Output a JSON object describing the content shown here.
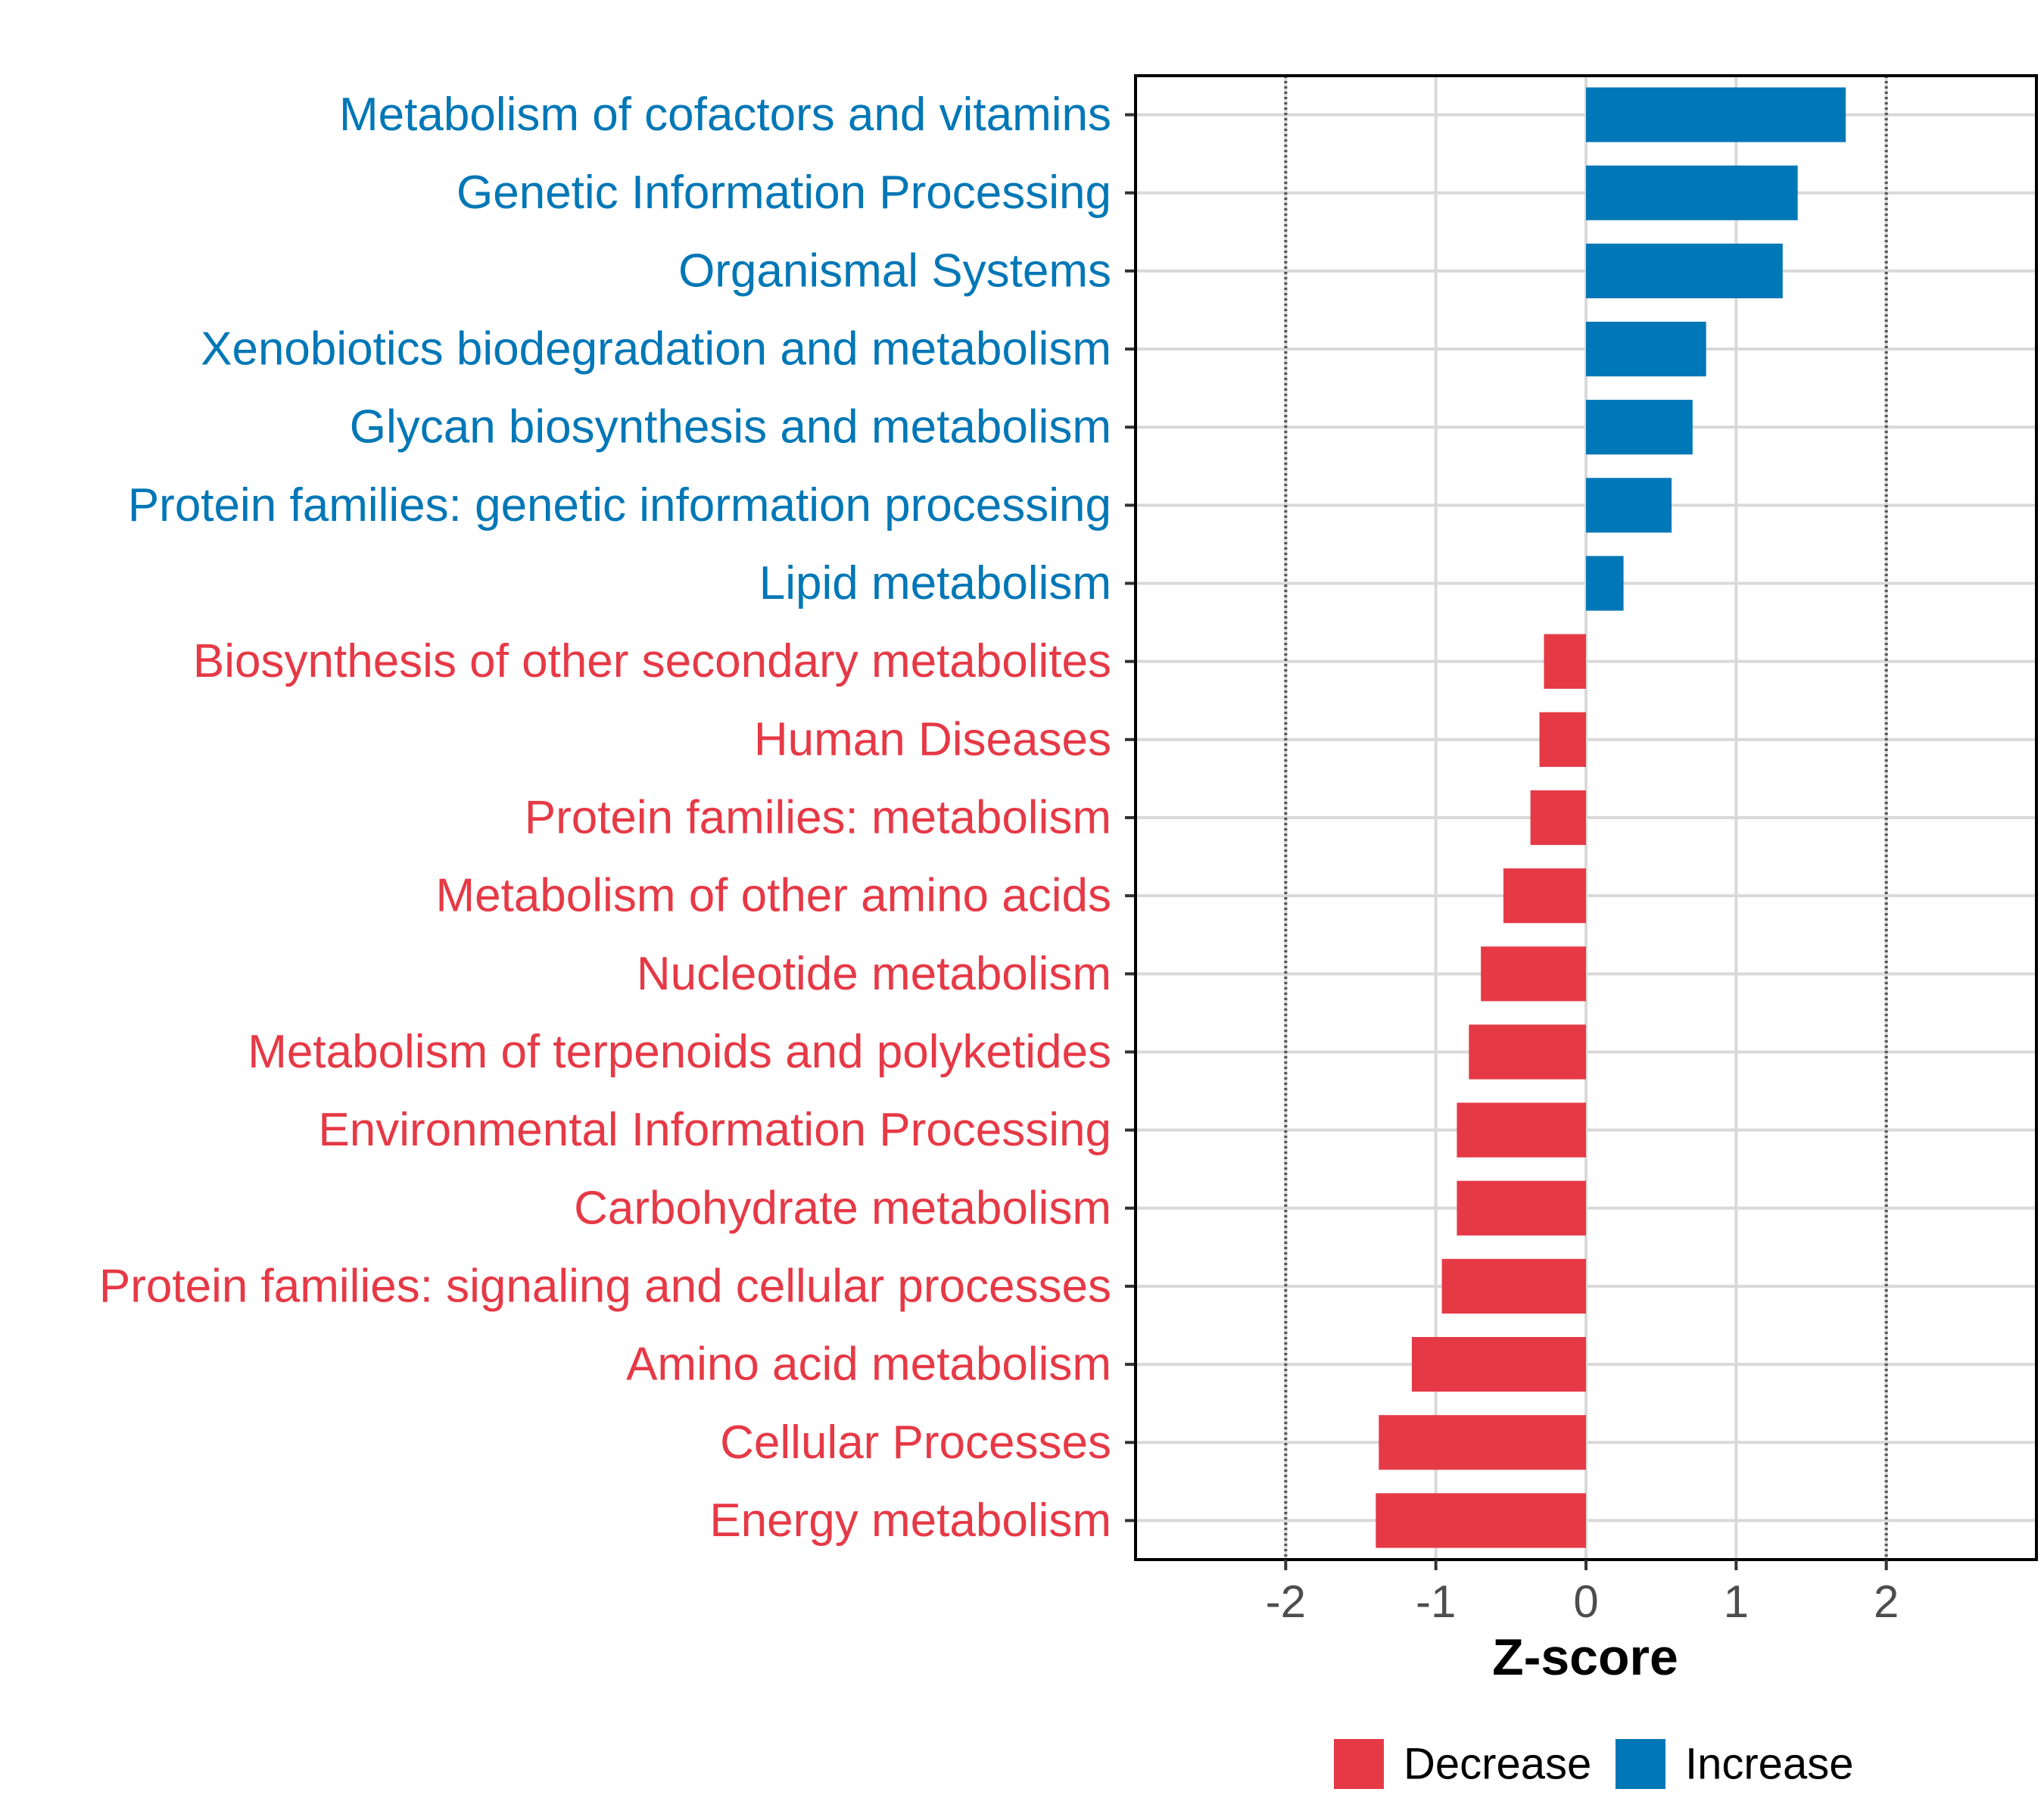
{
  "chart_data": {
    "type": "bar",
    "orientation": "horizontal",
    "xlabel": "Z-score",
    "ylabel": "",
    "xlim": [
      -3,
      3
    ],
    "xticks": [
      -2,
      -1,
      0,
      1,
      2
    ],
    "reference_lines": [
      -2,
      2
    ],
    "grid": true,
    "legend_position": "bottom",
    "legend": [
      {
        "name": "Decrease",
        "color": "#e63946"
      },
      {
        "name": "Increase",
        "color": "#0077b6"
      }
    ],
    "categories": [
      "Metabolism of cofactors and vitamins",
      "Genetic Information Processing",
      "Organismal Systems",
      "Xenobiotics biodegradation and metabolism",
      "Glycan biosynthesis and metabolism",
      "Protein families: genetic information processing",
      "Lipid metabolism",
      "Biosynthesis of other secondary metabolites",
      "Human Diseases",
      "Protein families: metabolism",
      "Metabolism of other amino acids",
      "Nucleotide metabolism",
      "Metabolism of terpenoids and polyketides",
      "Environmental Information Processing",
      "Carbohydrate metabolism",
      "Protein families: signaling and cellular processes",
      "Amino acid metabolism",
      "Cellular Processes",
      "Energy metabolism"
    ],
    "values": [
      1.73,
      1.41,
      1.31,
      0.8,
      0.71,
      0.57,
      0.25,
      -0.28,
      -0.31,
      -0.37,
      -0.55,
      -0.7,
      -0.78,
      -0.86,
      -0.86,
      -0.96,
      -1.16,
      -1.38,
      -1.4
    ],
    "groups": [
      "Increase",
      "Increase",
      "Increase",
      "Increase",
      "Increase",
      "Increase",
      "Increase",
      "Decrease",
      "Decrease",
      "Decrease",
      "Decrease",
      "Decrease",
      "Decrease",
      "Decrease",
      "Decrease",
      "Decrease",
      "Decrease",
      "Decrease",
      "Decrease"
    ]
  }
}
